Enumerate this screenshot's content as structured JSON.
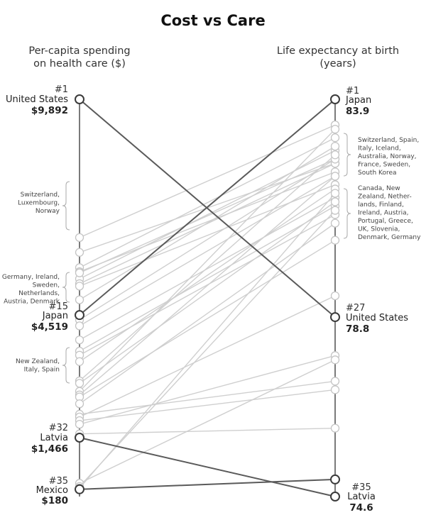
{
  "chart_data": {
    "type": "slope",
    "title": "Cost vs Care",
    "left_axis": {
      "label_line1": "Per-capita spending",
      "label_line2": "on health care ($)",
      "min": 0,
      "max": 9892
    },
    "right_axis": {
      "label_line1": "Life expectancy at birth",
      "label_line2": "(years)",
      "min": 74.6,
      "max": 83.9
    },
    "highlighted": [
      {
        "name": "United States",
        "rank_left": "#1",
        "left": 9892,
        "left_label": "$9,892",
        "rank_right": "#27",
        "right": 78.8,
        "right_label": "78.8"
      },
      {
        "name": "Japan",
        "rank_left": "#15",
        "left": 4519,
        "left_label": "$4,519",
        "rank_right": "#1",
        "right": 83.9,
        "right_label": "83.9"
      },
      {
        "name": "Latvia",
        "rank_left": "#32",
        "left": 1466,
        "left_label": "$1,466",
        "rank_right": "#35",
        "right": 74.6,
        "right_label": "74.6"
      },
      {
        "name": "Mexico",
        "rank_left": "#35",
        "left": 180,
        "left_label": "$180",
        "rank_right": "",
        "right": 75.0,
        "right_label": ""
      }
    ],
    "others": [
      {
        "left": 6450,
        "right": 83.3
      },
      {
        "left": 6080,
        "right": 82.4
      },
      {
        "left": 5420,
        "right": 82.7
      },
      {
        "left": 5700,
        "right": 83.0
      },
      {
        "left": 5600,
        "right": 82.2
      },
      {
        "left": 5570,
        "right": 82.5
      },
      {
        "left": 5300,
        "right": 82.4
      },
      {
        "left": 5240,
        "right": 81.9
      },
      {
        "left": 4900,
        "right": 82.8
      },
      {
        "left": 4400,
        "right": 82.5
      },
      {
        "left": 4250,
        "right": 82.1
      },
      {
        "left": 3900,
        "right": 81.6
      },
      {
        "left": 3620,
        "right": 81.4
      },
      {
        "left": 3520,
        "right": 81.2
      },
      {
        "left": 3360,
        "right": 81.8
      },
      {
        "left": 2880,
        "right": 82.6
      },
      {
        "left": 2820,
        "right": 81.5
      },
      {
        "left": 2620,
        "right": 83.2
      },
      {
        "left": 2530,
        "right": 82.1
      },
      {
        "left": 2480,
        "right": 80.6
      },
      {
        "left": 2310,
        "right": 81.0
      },
      {
        "left": 2050,
        "right": 77.3
      },
      {
        "left": 1980,
        "right": 79.3
      },
      {
        "left": 1890,
        "right": 77.1
      },
      {
        "left": 1800,
        "right": 77.9
      },
      {
        "left": 1560,
        "right": 76.2
      },
      {
        "left": 330,
        "right": 77.8
      },
      {
        "left": 250,
        "right": 81.3
      },
      {
        "left": 210,
        "right": 81.7
      }
    ],
    "left_groups": [
      {
        "lines": [
          "Switzerland,",
          "Luxembourg,",
          "Norway"
        ]
      },
      {
        "lines": [
          "Germany, Ireland,",
          "Sweden,",
          "Netherlands,",
          "Austria, Denmark"
        ]
      },
      {
        "lines": [
          "New Zealand,",
          "Italy, Spain"
        ]
      }
    ],
    "right_groups": [
      {
        "lines": [
          "Switzerland, Spain,",
          "Italy, Iceland,",
          "Australia, Norway,",
          "France, Sweden,",
          "South Korea"
        ]
      },
      {
        "lines": [
          "Canada, New",
          "Zealand, Nether-",
          "lands, Finland,",
          "Ireland, Austria,",
          "Portugal, Greece,",
          "UK, Slovenia,",
          "Denmark, Germany"
        ]
      }
    ]
  }
}
